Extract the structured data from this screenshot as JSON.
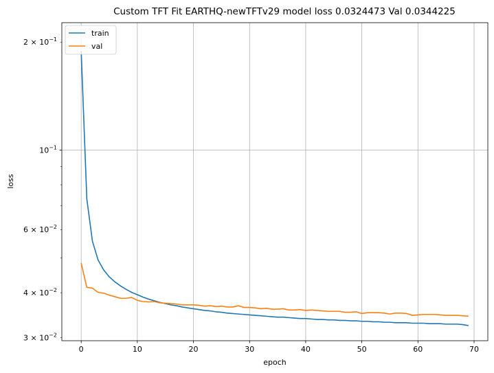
{
  "chart_data": {
    "type": "line",
    "title": "Custom TFT Fit EARTHQ-newTFTv29 model loss 0.0324473 Val 0.0344225",
    "xlabel": "epoch",
    "ylabel": "loss",
    "yscale": "log",
    "grid": true,
    "legend_position": "top-left",
    "xlim": [
      -3.45,
      72.45
    ],
    "ylim": [
      0.0294,
      0.2265
    ],
    "x_ticks": [
      0,
      10,
      20,
      30,
      40,
      50,
      60,
      70
    ],
    "x_tick_labels": [
      "0",
      "10",
      "20",
      "30",
      "40",
      "50",
      "60",
      "70"
    ],
    "y_major_ticks": [
      {
        "value": 0.1,
        "base": "10",
        "exp": "−1"
      }
    ],
    "y_minor_ticks": [
      {
        "value": 0.03,
        "mant": "3",
        "exp": "−2"
      },
      {
        "value": 0.04,
        "mant": "4",
        "exp": "−2"
      },
      {
        "value": 0.05,
        "mant": "",
        "exp": ""
      },
      {
        "value": 0.06,
        "mant": "6",
        "exp": "−2"
      },
      {
        "value": 0.07,
        "mant": "",
        "exp": ""
      },
      {
        "value": 0.08,
        "mant": "",
        "exp": ""
      },
      {
        "value": 0.09,
        "mant": "",
        "exp": ""
      },
      {
        "value": 0.2,
        "mant": "2",
        "exp": "−1"
      }
    ],
    "series": [
      {
        "name": "train",
        "color": "#1f77b4",
        "x": [
          0,
          1,
          2,
          3,
          4,
          5,
          6,
          7,
          8,
          9,
          10,
          11,
          12,
          13,
          14,
          15,
          16,
          17,
          18,
          19,
          20,
          21,
          22,
          23,
          24,
          25,
          26,
          27,
          28,
          29,
          30,
          31,
          32,
          33,
          34,
          35,
          36,
          37,
          38,
          39,
          40,
          41,
          42,
          43,
          44,
          45,
          46,
          47,
          48,
          49,
          50,
          51,
          52,
          53,
          54,
          55,
          56,
          57,
          58,
          59,
          60,
          61,
          62,
          63,
          64,
          65,
          66,
          67,
          68,
          69
        ],
        "values": [
          0.1885,
          0.0731,
          0.0557,
          0.0494,
          0.0463,
          0.0443,
          0.0429,
          0.0418,
          0.0409,
          0.0401,
          0.0395,
          0.0389,
          0.0384,
          0.038,
          0.0376,
          0.0373,
          0.037,
          0.0368,
          0.0365,
          0.0363,
          0.0361,
          0.0359,
          0.0357,
          0.0356,
          0.0354,
          0.0353,
          0.0351,
          0.035,
          0.0349,
          0.0348,
          0.0347,
          0.0346,
          0.0345,
          0.0344,
          0.0343,
          0.0342,
          0.0342,
          0.0341,
          0.034,
          0.0339,
          0.0339,
          0.0338,
          0.0337,
          0.0337,
          0.0336,
          0.0336,
          0.0335,
          0.0335,
          0.0334,
          0.0334,
          0.0333,
          0.0333,
          0.0332,
          0.0332,
          0.0331,
          0.0331,
          0.033,
          0.033,
          0.033,
          0.0329,
          0.0329,
          0.0329,
          0.0328,
          0.0328,
          0.0328,
          0.0327,
          0.0327,
          0.0327,
          0.0326,
          0.0324
        ]
      },
      {
        "name": "val",
        "color": "#ff7f0e",
        "x": [
          0,
          1,
          2,
          3,
          4,
          5,
          6,
          7,
          8,
          9,
          10,
          11,
          12,
          13,
          14,
          15,
          16,
          17,
          18,
          19,
          20,
          21,
          22,
          23,
          24,
          25,
          26,
          27,
          28,
          29,
          30,
          31,
          32,
          33,
          34,
          35,
          36,
          37,
          38,
          39,
          40,
          41,
          42,
          43,
          44,
          45,
          46,
          47,
          48,
          49,
          50,
          51,
          52,
          53,
          54,
          55,
          56,
          57,
          58,
          59,
          60,
          61,
          62,
          63,
          64,
          65,
          66,
          67,
          68,
          69
        ],
        "values": [
          0.0484,
          0.0414,
          0.0412,
          0.0401,
          0.0399,
          0.0394,
          0.039,
          0.0386,
          0.0386,
          0.0388,
          0.0381,
          0.0378,
          0.0377,
          0.0378,
          0.0375,
          0.0374,
          0.0373,
          0.0372,
          0.037,
          0.037,
          0.037,
          0.0369,
          0.0367,
          0.0368,
          0.0366,
          0.0367,
          0.0365,
          0.0365,
          0.0368,
          0.0364,
          0.0364,
          0.0363,
          0.0361,
          0.0362,
          0.036,
          0.036,
          0.0361,
          0.0358,
          0.0358,
          0.0359,
          0.0357,
          0.0358,
          0.0357,
          0.0356,
          0.0355,
          0.0355,
          0.0355,
          0.0353,
          0.0353,
          0.0354,
          0.035,
          0.0352,
          0.0352,
          0.0352,
          0.0351,
          0.0349,
          0.0351,
          0.0351,
          0.035,
          0.0346,
          0.0347,
          0.0348,
          0.0348,
          0.0348,
          0.0347,
          0.0346,
          0.0346,
          0.0346,
          0.0345,
          0.0344
        ]
      }
    ]
  }
}
